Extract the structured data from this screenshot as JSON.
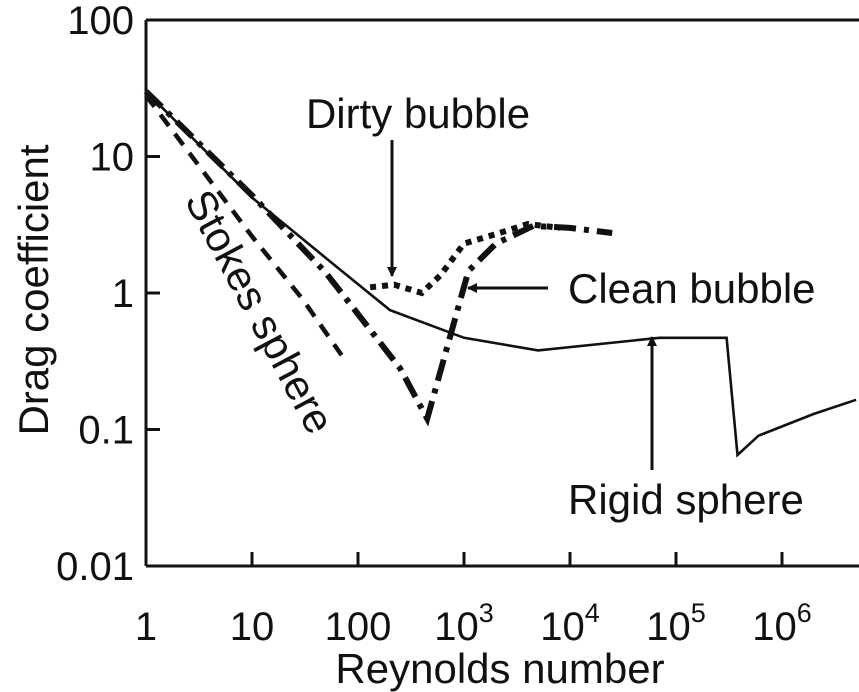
{
  "chart_data": {
    "type": "line",
    "x_scale": "log",
    "y_scale": "log",
    "xlabel": "Reynolds number",
    "ylabel": "Drag coefficient",
    "xlim": [
      1,
      5000000
    ],
    "ylim": [
      0.01,
      100
    ],
    "grid": false,
    "x_ticks": [
      {
        "value": 1,
        "base": "1",
        "exp": ""
      },
      {
        "value": 10,
        "base": "10",
        "exp": ""
      },
      {
        "value": 100,
        "base": "100",
        "exp": ""
      },
      {
        "value": 1000,
        "base": "10",
        "exp": "3"
      },
      {
        "value": 10000,
        "base": "10",
        "exp": "4"
      },
      {
        "value": 100000,
        "base": "10",
        "exp": "5"
      },
      {
        "value": 1000000,
        "base": "10",
        "exp": "6"
      }
    ],
    "y_ticks": [
      {
        "value": 100,
        "label": "100"
      },
      {
        "value": 10,
        "label": "10"
      },
      {
        "value": 1,
        "label": "1"
      },
      {
        "value": 0.1,
        "label": "0.1"
      },
      {
        "value": 0.01,
        "label": "0.01"
      }
    ],
    "series": [
      {
        "name": "Rigid sphere",
        "style": "solid",
        "points": [
          [
            1,
            30
          ],
          [
            10,
            5
          ],
          [
            50,
            1.8
          ],
          [
            200,
            0.75
          ],
          [
            1000,
            0.47
          ],
          [
            5000,
            0.38
          ],
          [
            70000,
            0.47
          ],
          [
            300000,
            0.47
          ],
          [
            380000,
            0.065
          ],
          [
            600000,
            0.09
          ],
          [
            2000000,
            0.13
          ],
          [
            5000000,
            0.165
          ]
        ]
      },
      {
        "name": "Stokes sphere",
        "style": "dashed",
        "points": [
          [
            1,
            28
          ],
          [
            3,
            9
          ],
          [
            10,
            2.6
          ],
          [
            30,
            0.9
          ],
          [
            70,
            0.35
          ]
        ]
      },
      {
        "name": "Clean bubble",
        "style": "dash-dot",
        "points": [
          [
            1,
            30
          ],
          [
            10,
            5.2
          ],
          [
            50,
            1.4
          ],
          [
            100,
            0.7
          ],
          [
            250,
            0.28
          ],
          [
            450,
            0.12
          ],
          [
            1100,
            1.45
          ],
          [
            2000,
            2.3
          ],
          [
            4500,
            3.1
          ],
          [
            10000,
            3.0
          ],
          [
            25000,
            2.75
          ]
        ]
      },
      {
        "name": "Dirty bubble",
        "style": "dotted",
        "points": [
          [
            130,
            1.1
          ],
          [
            220,
            1.15
          ],
          [
            400,
            1.0
          ],
          [
            600,
            1.35
          ],
          [
            1000,
            2.3
          ],
          [
            2000,
            2.7
          ],
          [
            4000,
            3.2
          ],
          [
            8000,
            3.0
          ]
        ]
      }
    ],
    "annotations": [
      {
        "text": "Dirty bubble",
        "arrow_to": [
          250,
          1.15
        ]
      },
      {
        "text": "Clean bubble",
        "arrow_to": [
          1100,
          1.45
        ]
      },
      {
        "text": "Stokes sphere",
        "rotated": true
      },
      {
        "text": "Rigid sphere",
        "arrow_to": [
          70000,
          0.47
        ]
      }
    ]
  }
}
